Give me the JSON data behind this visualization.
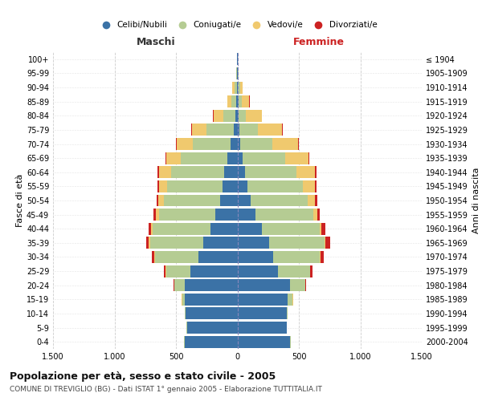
{
  "age_groups": [
    "0-4",
    "5-9",
    "10-14",
    "15-19",
    "20-24",
    "25-29",
    "30-34",
    "35-39",
    "40-44",
    "45-49",
    "50-54",
    "55-59",
    "60-64",
    "65-69",
    "70-74",
    "75-79",
    "80-84",
    "85-89",
    "90-94",
    "95-99",
    "100+"
  ],
  "birth_years": [
    "2000-2004",
    "1995-1999",
    "1990-1994",
    "1985-1989",
    "1980-1984",
    "1975-1979",
    "1970-1974",
    "1965-1969",
    "1960-1964",
    "1955-1959",
    "1950-1954",
    "1945-1949",
    "1940-1944",
    "1935-1939",
    "1930-1934",
    "1925-1929",
    "1920-1924",
    "1915-1919",
    "1910-1914",
    "1905-1909",
    "≤ 1904"
  ],
  "colors": {
    "celibe": "#3b72a6",
    "coniugato": "#b5cc93",
    "vedovo": "#f0c96e",
    "divorziato": "#cc2222"
  },
  "males": {
    "celibe": [
      430,
      410,
      420,
      430,
      430,
      380,
      320,
      280,
      220,
      180,
      140,
      120,
      110,
      80,
      55,
      30,
      15,
      8,
      5,
      2,
      2
    ],
    "coniugato": [
      2,
      2,
      5,
      20,
      80,
      200,
      350,
      430,
      470,
      460,
      460,
      450,
      430,
      380,
      310,
      220,
      100,
      40,
      20,
      5,
      3
    ],
    "vedovo": [
      0,
      0,
      0,
      1,
      2,
      3,
      5,
      10,
      15,
      25,
      45,
      70,
      100,
      120,
      130,
      120,
      80,
      35,
      15,
      3,
      1
    ],
    "divorziato": [
      0,
      0,
      0,
      2,
      5,
      12,
      20,
      25,
      20,
      18,
      15,
      12,
      10,
      8,
      5,
      3,
      2,
      0,
      0,
      0,
      0
    ]
  },
  "females": {
    "nubile": [
      430,
      400,
      400,
      410,
      430,
      330,
      290,
      260,
      200,
      150,
      110,
      80,
      60,
      40,
      25,
      15,
      10,
      8,
      5,
      2,
      2
    ],
    "coniugata": [
      2,
      2,
      8,
      40,
      120,
      260,
      380,
      450,
      470,
      470,
      460,
      450,
      420,
      350,
      260,
      150,
      60,
      30,
      15,
      5,
      2
    ],
    "vedova": [
      0,
      0,
      0,
      1,
      2,
      3,
      5,
      8,
      15,
      30,
      60,
      100,
      150,
      190,
      210,
      200,
      130,
      60,
      25,
      5,
      1
    ],
    "divorziata": [
      0,
      0,
      0,
      2,
      6,
      18,
      30,
      35,
      28,
      22,
      18,
      15,
      12,
      8,
      5,
      3,
      2,
      1,
      0,
      0,
      0
    ]
  },
  "title": "Popolazione per età, sesso e stato civile - 2005",
  "subtitle": "COMUNE DI TREVIGLIO (BG) - Dati ISTAT 1° gennaio 2005 - Elaborazione TUTTITALIA.IT",
  "xlabel_left": "Maschi",
  "xlabel_right": "Femmine",
  "ylabel_left": "Fasce di età",
  "ylabel_right": "Anni di nascita",
  "xlim": 1500,
  "xticks": [
    -1500,
    -1000,
    -500,
    0,
    500,
    1000,
    1500
  ],
  "xtick_labels": [
    "1.500",
    "1.000",
    "500",
    "0",
    "500",
    "1.000",
    "1.500"
  ],
  "background_color": "#ffffff",
  "grid_color": "#cccccc"
}
